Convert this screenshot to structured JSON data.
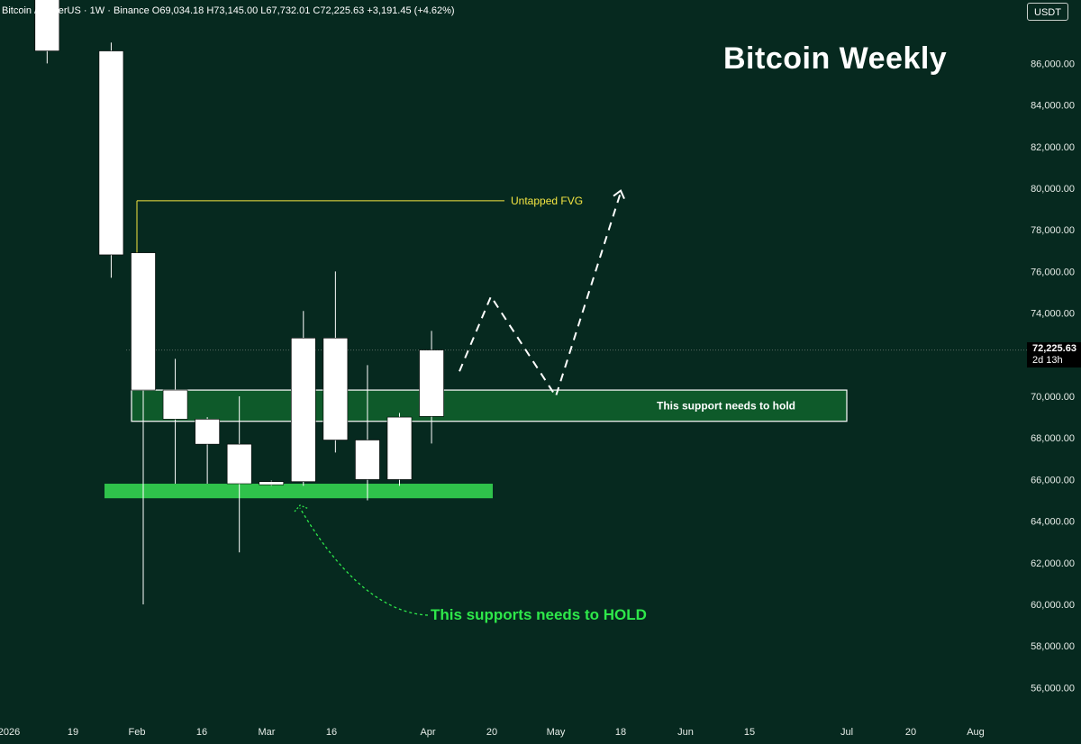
{
  "header": {
    "symbol": "Bitcoin / TetherUS",
    "interval": "1W",
    "exchange": "Binance",
    "open_label": "O",
    "open": "69,034.18",
    "high_label": "H",
    "high": "73,145.00",
    "low_label": "L",
    "low": "67,732.01",
    "close_label": "C",
    "close": "72,225.63",
    "change": "+3,191.45 (+4.62%)"
  },
  "currency_button": "USDT",
  "price_tag": {
    "value": "72,225.63",
    "countdown": "2d 13h"
  },
  "colors": {
    "background": "#06291f",
    "candle": "#ffffff",
    "fvg_line": "#f5e642",
    "support_zone_fill": "#0e5a2a",
    "bright_support": "#2fc24b",
    "green_text": "#2ee84a"
  },
  "chart_data": {
    "type": "candlestick",
    "title": "Bitcoin Weekly",
    "y_axis": {
      "ticks": [
        "86,000.00",
        "84,000.00",
        "82,000.00",
        "80,000.00",
        "78,000.00",
        "76,000.00",
        "74,000.00",
        "72,000.00",
        "70,000.00",
        "68,000.00",
        "66,000.00",
        "64,000.00",
        "62,000.00",
        "60,000.00",
        "58,000.00",
        "56,000.00"
      ],
      "ylim": [
        55000,
        88500
      ]
    },
    "x_axis": {
      "ticks": [
        "2026",
        "19",
        "Feb",
        "16",
        "Mar",
        "16",
        "Apr",
        "20",
        "May",
        "18",
        "Jun",
        "15",
        "Jul",
        "20",
        "Aug"
      ]
    },
    "candles": [
      {
        "week": "2026-01-05",
        "open": 90500,
        "close": 86600,
        "high": 91000,
        "low": 86000
      },
      {
        "week": "2026-01-19",
        "open": 86600,
        "close": 76800,
        "high": 87000,
        "low": 75700
      },
      {
        "week": "2026-01-26",
        "open": 76900,
        "close": 70300,
        "high": 76900,
        "low": 60000
      },
      {
        "week": "2026-02-02",
        "open": 70300,
        "close": 68900,
        "high": 71800,
        "low": 65800
      },
      {
        "week": "2026-02-09",
        "open": 68900,
        "close": 67700,
        "high": 69000,
        "low": 65800
      },
      {
        "week": "2026-02-16",
        "open": 67700,
        "close": 65800,
        "high": 70000,
        "low": 62500
      },
      {
        "week": "2026-02-23",
        "open": 65900,
        "close": 65750,
        "high": 65950,
        "low": 65700
      },
      {
        "week": "2026-03-02",
        "open": 65900,
        "close": 72800,
        "high": 74100,
        "low": 65700
      },
      {
        "week": "2026-03-09",
        "open": 72800,
        "close": 67900,
        "high": 76000,
        "low": 67300
      },
      {
        "week": "2026-03-16",
        "open": 67900,
        "close": 66000,
        "high": 71500,
        "low": 65000
      },
      {
        "week": "2026-03-23",
        "open": 66000,
        "close": 69000,
        "high": 69200,
        "low": 65700
      },
      {
        "week": "2026-03-30",
        "open": 69034.18,
        "close": 72225.63,
        "high": 73145.0,
        "low": 67732.01
      }
    ],
    "last_price": 72225.63,
    "annotations": {
      "fvg": {
        "label": "Untapped FVG",
        "price": 79400,
        "from": "2026-01-26",
        "to": "2026-05-18"
      },
      "support_zone": {
        "label": "This support needs to hold",
        "top": 70300,
        "bottom": 68800,
        "from": "2026-01-26",
        "to": "2026-07-01"
      },
      "lower_support": {
        "label": "This supports needs to HOLD",
        "top": 65800,
        "bottom": 65100,
        "from": "2026-01-19",
        "to": "2026-04-20"
      },
      "projection": [
        {
          "week": "2026-04-06",
          "price": 71200
        },
        {
          "week": "2026-04-20",
          "price": 74800
        },
        {
          "week": "2026-05-04",
          "price": 70000
        },
        {
          "week": "2026-05-18",
          "price": 79800
        }
      ]
    }
  }
}
